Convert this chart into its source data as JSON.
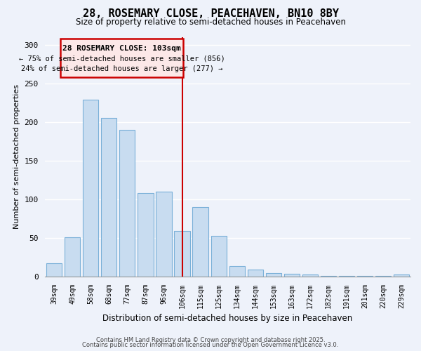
{
  "title": "28, ROSEMARY CLOSE, PEACEHAVEN, BN10 8BY",
  "subtitle": "Size of property relative to semi-detached houses in Peacehaven",
  "xlabel": "Distribution of semi-detached houses by size in Peacehaven",
  "ylabel": "Number of semi-detached properties",
  "categories": [
    "39sqm",
    "49sqm",
    "58sqm",
    "68sqm",
    "77sqm",
    "87sqm",
    "96sqm",
    "106sqm",
    "115sqm",
    "125sqm",
    "134sqm",
    "144sqm",
    "153sqm",
    "163sqm",
    "172sqm",
    "182sqm",
    "191sqm",
    "201sqm",
    "220sqm",
    "229sqm"
  ],
  "values": [
    17,
    51,
    229,
    205,
    190,
    108,
    110,
    59,
    90,
    52,
    13,
    9,
    4,
    3,
    2,
    1,
    1,
    1,
    1,
    2
  ],
  "bar_color": "#c8dcf0",
  "bar_edge_color": "#7ab0d8",
  "marker_line_index": 7,
  "marker_label": "28 ROSEMARY CLOSE: 103sqm",
  "pct_smaller": "← 75% of semi-detached houses are smaller (856)",
  "pct_larger": "24% of semi-detached houses are larger (277) →",
  "annotation_box_facecolor": "#fce8e8",
  "annotation_box_edgecolor": "#cc0000",
  "ylim": [
    0,
    310
  ],
  "yticks": [
    0,
    50,
    100,
    150,
    200,
    250,
    300
  ],
  "footer1": "Contains HM Land Registry data © Crown copyright and database right 2025.",
  "footer2": "Contains public sector information licensed under the Open Government Licence v3.0.",
  "background_color": "#eef2fa",
  "grid_color": "#ffffff"
}
